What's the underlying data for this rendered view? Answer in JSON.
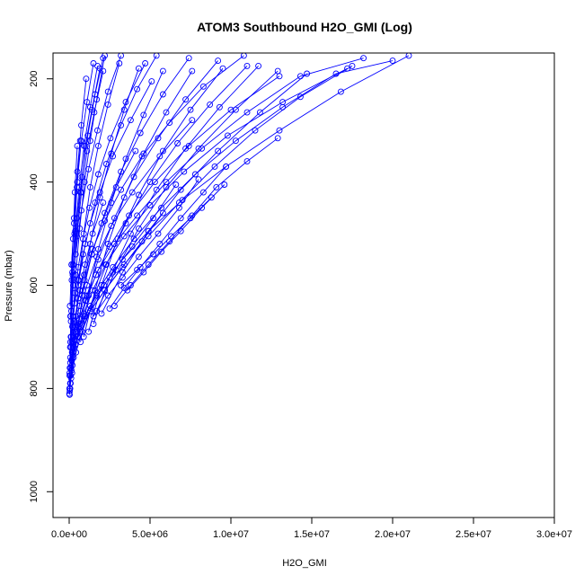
{
  "chart_data": {
    "type": "line",
    "title": "ATOM3 Southbound H2O_GMI (Log)",
    "xlabel": "H2O_GMI",
    "ylabel": "Pressure (mbar)",
    "xlim": [
      -1000000,
      30000000
    ],
    "ylim": [
      1050,
      150
    ],
    "y_axis_inverted": true,
    "x_ticks": [
      0,
      5000000,
      10000000,
      15000000,
      20000000,
      25000000,
      30000000
    ],
    "x_tick_labels": [
      "0.0e+00",
      "5.0e+06",
      "1.0e+07",
      "1.5e+07",
      "2.0e+07",
      "2.5e+07",
      "3.0e+07"
    ],
    "y_ticks": [
      200,
      400,
      600,
      800,
      1000
    ],
    "y_tick_labels": [
      "200",
      "400",
      "600",
      "800",
      "1000"
    ],
    "grid": false,
    "legend": "none",
    "marker": "open-circle",
    "line_color": "#0000ff",
    "series": [
      {
        "x": [
          25000,
          60000,
          110000,
          180000,
          280000,
          420000,
          650000,
          980000,
          1450000,
          2100000
        ],
        "y": [
          812,
          790,
          760,
          730,
          700,
          660,
          610,
          560,
          500,
          440
        ]
      },
      {
        "x": [
          40000,
          90000,
          160000,
          260000,
          400000,
          620000,
          950000,
          1400000,
          2000000,
          2900000,
          4100000
        ],
        "y": [
          805,
          775,
          745,
          715,
          680,
          640,
          590,
          540,
          480,
          410,
          340
        ]
      },
      {
        "x": [
          60000,
          140000,
          260000,
          430000,
          700000,
          1100000,
          1700000,
          2600000,
          3900000,
          5600000,
          7600000
        ],
        "y": [
          800,
          765,
          730,
          690,
          650,
          600,
          545,
          485,
          420,
          350,
          280
        ]
      },
      {
        "x": [
          90000,
          200000,
          380000,
          650000,
          1050000,
          1650000,
          2500000,
          3700000,
          5300000,
          7400000,
          10000000,
          13000000
        ],
        "y": [
          790,
          755,
          715,
          675,
          630,
          580,
          525,
          465,
          400,
          330,
          260,
          195
        ]
      },
      {
        "x": [
          120000,
          280000,
          520000,
          900000,
          1450000,
          2250000,
          3400000,
          5000000,
          7100000,
          9800000,
          13200000,
          17200000
        ],
        "y": [
          780,
          740,
          700,
          655,
          610,
          560,
          505,
          445,
          380,
          310,
          245,
          180
        ]
      },
      {
        "x": [
          180000,
          420000,
          800000,
          1350000,
          2150000,
          3300000,
          4900000,
          7000000,
          9700000,
          13000000,
          16800000,
          21000000
        ],
        "y": [
          770,
          730,
          690,
          645,
          600,
          550,
          495,
          435,
          370,
          300,
          225,
          155
        ]
      },
      {
        "x": [
          30000,
          70000,
          130000,
          220000,
          360000,
          560000,
          850000,
          1250000,
          1800000,
          2550000,
          3500000,
          4700000
        ],
        "y": [
          775,
          740,
          700,
          660,
          615,
          565,
          510,
          450,
          385,
          315,
          245,
          170
        ]
      },
      {
        "x": [
          50000,
          110000,
          200000,
          340000,
          550000,
          860000,
          1300000,
          1900000,
          2700000,
          3800000,
          5100000
        ],
        "y": [
          760,
          720,
          680,
          635,
          590,
          540,
          480,
          420,
          350,
          280,
          205
        ]
      },
      {
        "x": [
          70000,
          170000,
          320000,
          560000,
          920000,
          1450000,
          2200000,
          3200000,
          4500000,
          6200000,
          8300000,
          10800000
        ],
        "y": [
          750,
          710,
          670,
          625,
          580,
          530,
          475,
          415,
          350,
          285,
          215,
          155
        ]
      },
      {
        "x": [
          140000,
          330000,
          640000,
          1100000,
          1800000,
          2800000,
          4200000,
          6000000,
          8200000,
          11000000,
          14300000,
          18200000
        ],
        "y": [
          745,
          705,
          665,
          620,
          570,
          520,
          465,
          400,
          335,
          265,
          195,
          160
        ]
      },
      {
        "x": [
          220000,
          520000,
          1000000,
          1700000,
          2700000,
          4000000,
          5700000,
          7800000,
          10300000,
          13200000,
          16500000,
          20000000
        ],
        "y": [
          735,
          700,
          660,
          615,
          565,
          510,
          450,
          385,
          320,
          255,
          190,
          165
        ]
      },
      {
        "x": [
          300000,
          700000,
          1300000,
          2200000,
          3400000,
          4900000,
          6800000,
          9000000,
          11500000,
          14300000,
          17500000
        ],
        "y": [
          720,
          690,
          650,
          610,
          560,
          505,
          440,
          370,
          300,
          235,
          175
        ]
      },
      {
        "x": [
          400000,
          950000,
          1700000,
          2700000,
          3900000,
          5200000,
          6600000
        ],
        "y": [
          690,
          660,
          620,
          575,
          525,
          470,
          405
        ]
      },
      {
        "x": [
          600000,
          1300000,
          2200000,
          3300000,
          4500000,
          5800000
        ],
        "y": [
          680,
          650,
          610,
          565,
          515,
          460
        ]
      },
      {
        "x": [
          1500000,
          2400000,
          3300000,
          4300000,
          5500000,
          6800000,
          8000000
        ],
        "y": [
          660,
          620,
          585,
          545,
          500,
          450,
          395
        ]
      },
      {
        "x": [
          2500000,
          3400000,
          4400000,
          5600000,
          6900000,
          8300000,
          9700000
        ],
        "y": [
          645,
          605,
          565,
          520,
          470,
          420,
          370
        ]
      },
      {
        "x": [
          2800000,
          3800000,
          4900000,
          6200000,
          7600000,
          9100000,
          11000000,
          12900000
        ],
        "y": [
          640,
          600,
          560,
          515,
          465,
          410,
          360,
          315
        ]
      },
      {
        "x": [
          3200000,
          4200000,
          5200000,
          6300000,
          7500000,
          8800000
        ],
        "y": [
          600,
          570,
          540,
          505,
          470,
          430
        ]
      },
      {
        "x": [
          3600000,
          4600000,
          5700000,
          6900000,
          8200000,
          9600000
        ],
        "y": [
          610,
          575,
          535,
          495,
          450,
          405
        ]
      },
      {
        "x": [
          100000,
          250000,
          450000,
          700000,
          1000000,
          1400000,
          1900000
        ],
        "y": [
          700,
          600,
          500,
          420,
          330,
          260,
          180
        ]
      },
      {
        "x": [
          200000,
          400000,
          650000,
          950000,
          1300000,
          1700000,
          2200000
        ],
        "y": [
          680,
          580,
          490,
          400,
          320,
          240,
          155
        ]
      },
      {
        "x": [
          350000,
          600000,
          900000,
          1300000,
          1800000,
          2400000,
          3100000
        ],
        "y": [
          690,
          590,
          500,
          410,
          330,
          250,
          170
        ]
      },
      {
        "x": [
          500000,
          850000,
          1300000,
          1900000,
          2600000,
          3400000,
          4300000
        ],
        "y": [
          700,
          610,
          520,
          430,
          345,
          260,
          180
        ]
      },
      {
        "x": [
          700000,
          1200000,
          1800000,
          2600000,
          3500000,
          4600000,
          5800000
        ],
        "y": [
          710,
          620,
          530,
          440,
          355,
          270,
          185
        ]
      },
      {
        "x": [
          900000,
          1600000,
          2400000,
          3400000,
          4600000,
          6000000,
          7600000
        ],
        "y": [
          700,
          610,
          520,
          430,
          345,
          265,
          185
        ]
      },
      {
        "x": [
          1200000,
          2000000,
          3000000,
          4300000,
          5800000,
          7500000,
          9500000
        ],
        "y": [
          690,
          600,
          510,
          425,
          340,
          260,
          180
        ]
      },
      {
        "x": [
          1500000,
          2500000,
          3800000,
          5400000,
          7200000,
          9300000,
          11700000
        ],
        "y": [
          675,
          585,
          500,
          415,
          335,
          255,
          175
        ]
      },
      {
        "x": [
          150000,
          300000,
          500000,
          750000,
          1050000
        ],
        "y": [
          560,
          470,
          380,
          290,
          200
        ]
      },
      {
        "x": [
          250000,
          480000,
          780000,
          1150000,
          1600000,
          2100000
        ],
        "y": [
          560,
          470,
          390,
          310,
          230,
          160
        ]
      },
      {
        "x": [
          400000,
          750000,
          1200000,
          1750000,
          2400000,
          3200000
        ],
        "y": [
          540,
          455,
          375,
          300,
          225,
          155
        ]
      },
      {
        "x": [
          550000,
          1000000,
          1600000,
          2300000,
          3200000,
          4200000,
          5400000
        ],
        "y": [
          600,
          520,
          440,
          365,
          290,
          220,
          155
        ]
      },
      {
        "x": [
          800000,
          1400000,
          2200000,
          3200000,
          4400000,
          5800000,
          7400000
        ],
        "y": [
          620,
          540,
          460,
          380,
          305,
          230,
          160
        ]
      },
      {
        "x": [
          1000000,
          1800000,
          2800000,
          4000000,
          5500000,
          7200000,
          9200000
        ],
        "y": [
          630,
          550,
          470,
          390,
          315,
          240,
          165
        ]
      },
      {
        "x": [
          1300000,
          2300000,
          3500000,
          5000000,
          6700000,
          8700000,
          11000000
        ],
        "y": [
          640,
          560,
          480,
          400,
          325,
          250,
          175
        ]
      },
      {
        "x": [
          1700000,
          2900000,
          4300000,
          6000000,
          8000000,
          10300000,
          12900000
        ],
        "y": [
          650,
          570,
          490,
          410,
          335,
          260,
          185
        ]
      },
      {
        "x": [
          2000000,
          3300000,
          4900000,
          6900000,
          9200000,
          11800000,
          14700000
        ],
        "y": [
          655,
          575,
          495,
          415,
          340,
          265,
          190
        ]
      },
      {
        "x": [
          50000,
          150000,
          300000,
          500000,
          750000,
          1100000,
          1500000
        ],
        "y": [
          640,
          560,
          480,
          400,
          320,
          245,
          170
        ]
      },
      {
        "x": [
          80000,
          200000,
          380000,
          620000,
          920000,
          1300000,
          1750000
        ],
        "y": [
          660,
          575,
          495,
          410,
          330,
          255,
          175
        ]
      },
      {
        "x": [
          110000,
          260000,
          480000,
          760000,
          1100000,
          1550000,
          2100000
        ],
        "y": [
          670,
          590,
          505,
          420,
          340,
          265,
          185
        ]
      },
      {
        "x": [
          10000,
          30000,
          60000,
          100000,
          160000,
          240000,
          350000,
          500000
        ],
        "y": [
          810,
          770,
          720,
          660,
          590,
          510,
          420,
          330
        ]
      },
      {
        "x": [
          15000,
          40000,
          80000,
          140000,
          220000,
          330000,
          480000,
          680000
        ],
        "y": [
          800,
          760,
          710,
          650,
          580,
          500,
          410,
          320
        ]
      }
    ]
  }
}
